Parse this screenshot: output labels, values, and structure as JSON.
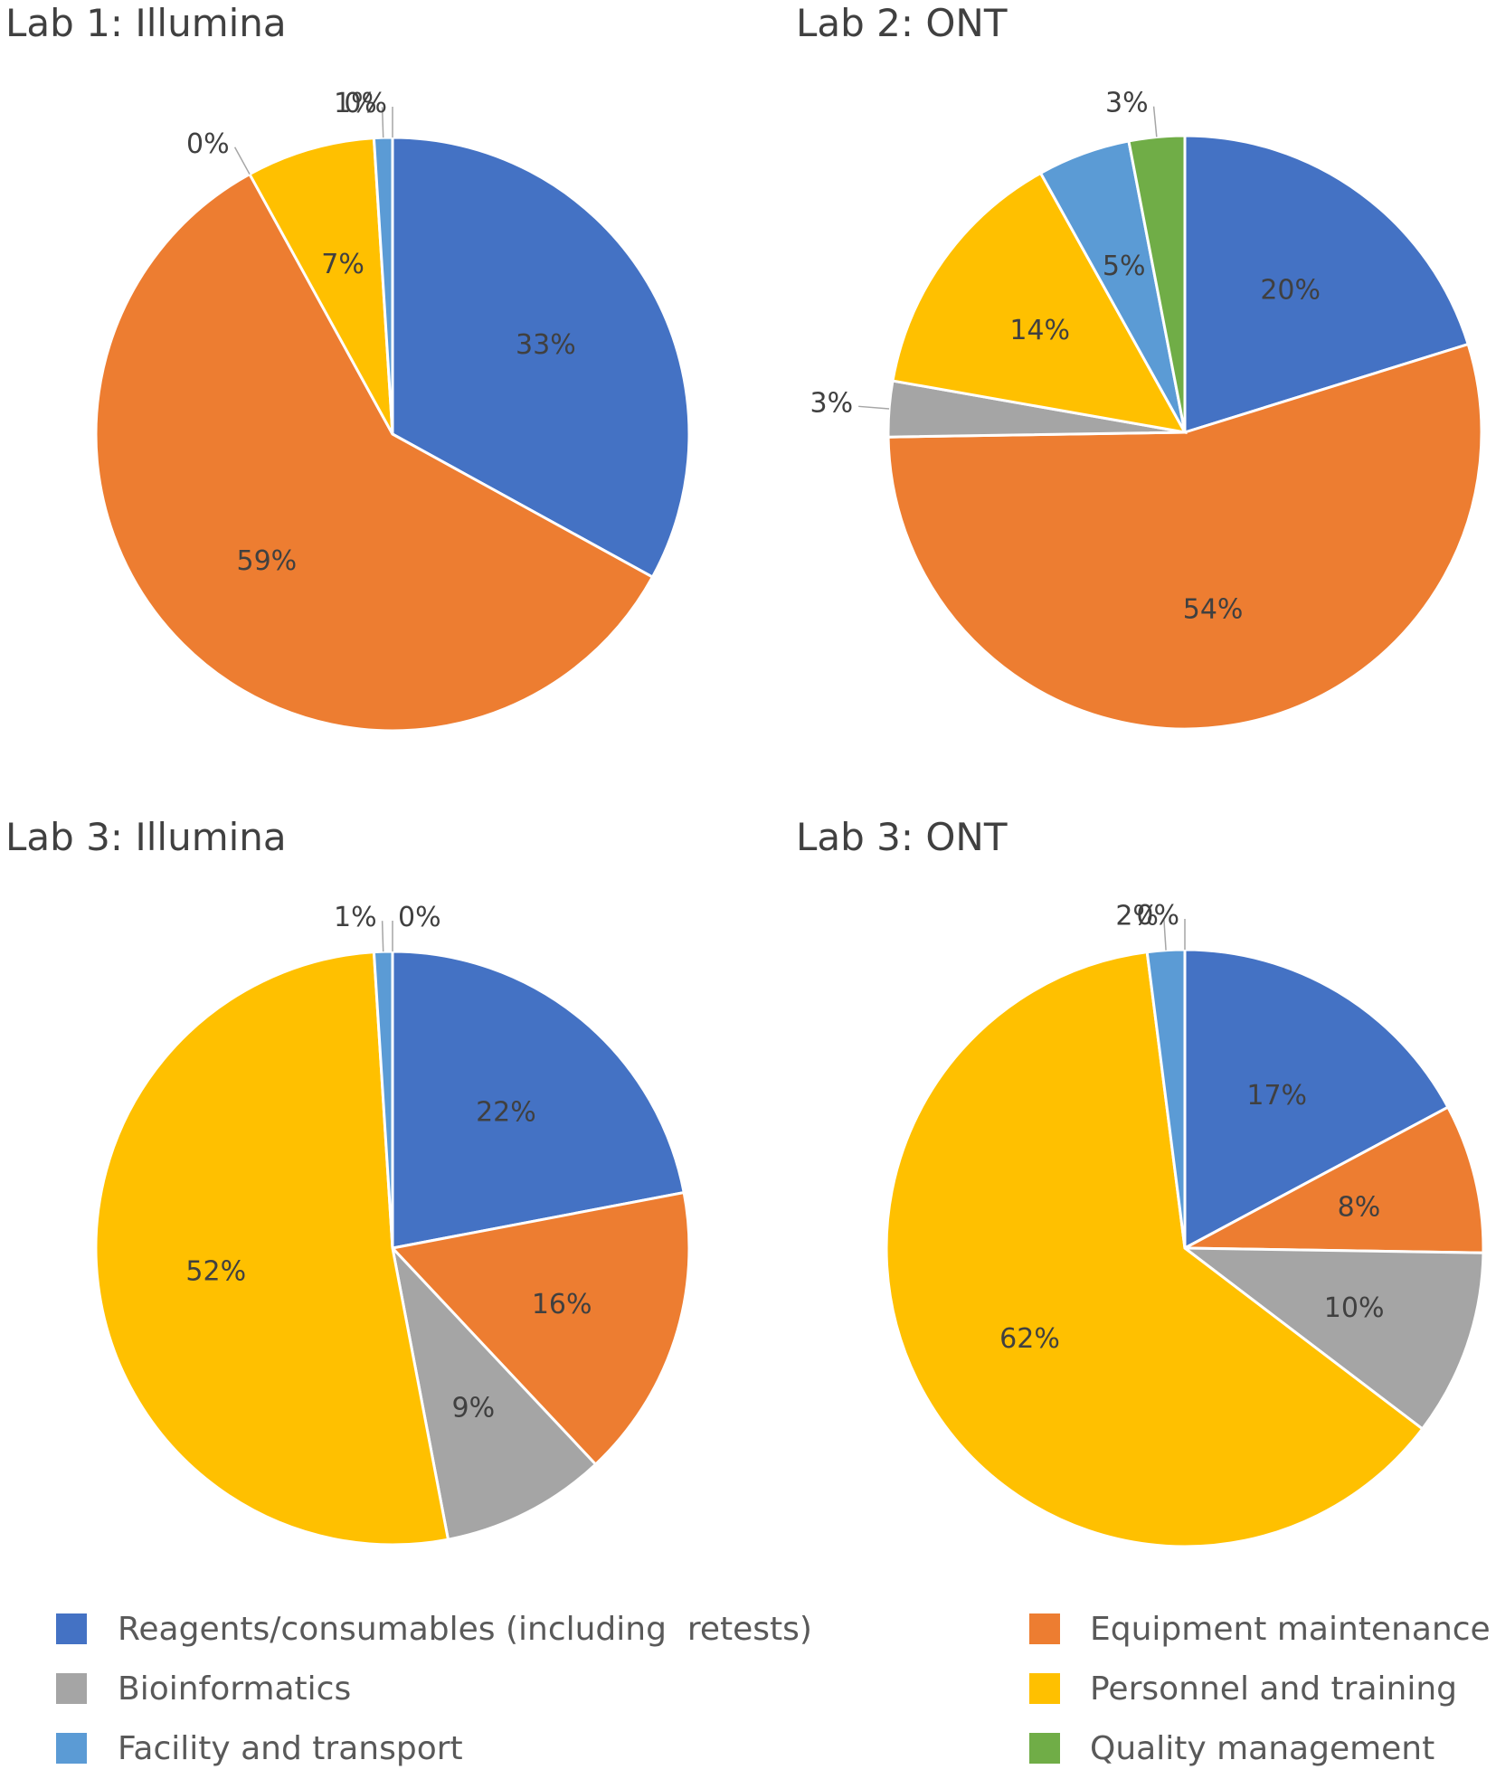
{
  "colors": {
    "reagents": "#4472C4",
    "equipment": "#ED7D31",
    "bioinformatics": "#A5A5A5",
    "personnel": "#FFC000",
    "facility": "#5B9BD5",
    "quality": "#70AD47"
  },
  "legend": [
    {
      "key": "reagents",
      "label": "Reagents/consumables (including  retests)"
    },
    {
      "key": "equipment",
      "label": "Equipment maintenance"
    },
    {
      "key": "bioinformatics",
      "label": "Bioinformatics"
    },
    {
      "key": "personnel",
      "label": "Personnel and training"
    },
    {
      "key": "facility",
      "label": "Facility and transport"
    },
    {
      "key": "quality",
      "label": "Quality management"
    }
  ],
  "chart_data": [
    {
      "type": "pie",
      "title": "Lab 1: Illumina",
      "slices": [
        {
          "key": "reagents",
          "value": 33,
          "label": "33%"
        },
        {
          "key": "equipment",
          "value": 59,
          "label": "59%"
        },
        {
          "key": "bioinformatics",
          "value": 0,
          "label": "0%"
        },
        {
          "key": "personnel",
          "value": 7,
          "label": "7%"
        },
        {
          "key": "facility",
          "value": 1,
          "label": "1%"
        },
        {
          "key": "quality",
          "value": 0,
          "label": "0%"
        }
      ]
    },
    {
      "type": "pie",
      "title": "Lab 2: ONT",
      "slices": [
        {
          "key": "reagents",
          "value": 20,
          "label": "20%"
        },
        {
          "key": "equipment",
          "value": 54,
          "label": "54%"
        },
        {
          "key": "bioinformatics",
          "value": 3,
          "label": "3%"
        },
        {
          "key": "personnel",
          "value": 14,
          "label": "14%"
        },
        {
          "key": "facility",
          "value": 5,
          "label": "5%"
        },
        {
          "key": "quality",
          "value": 3,
          "label": "3%"
        }
      ]
    },
    {
      "type": "pie",
      "title": "Lab 3: Illumina",
      "slices": [
        {
          "key": "reagents",
          "value": 22,
          "label": "22%"
        },
        {
          "key": "equipment",
          "value": 16,
          "label": "16%"
        },
        {
          "key": "bioinformatics",
          "value": 9,
          "label": "9%"
        },
        {
          "key": "personnel",
          "value": 52,
          "label": "52%"
        },
        {
          "key": "facility",
          "value": 1,
          "label": "1%"
        },
        {
          "key": "quality",
          "value": 0,
          "label": "0%"
        }
      ]
    },
    {
      "type": "pie",
      "title": "Lab 3: ONT",
      "slices": [
        {
          "key": "reagents",
          "value": 17,
          "label": "17%"
        },
        {
          "key": "equipment",
          "value": 8,
          "label": "8%"
        },
        {
          "key": "bioinformatics",
          "value": 10,
          "label": "10%"
        },
        {
          "key": "personnel",
          "value": 62,
          "label": "62%"
        },
        {
          "key": "facility",
          "value": 2,
          "label": "2%"
        },
        {
          "key": "quality",
          "value": 0,
          "label": "0%"
        }
      ]
    }
  ]
}
